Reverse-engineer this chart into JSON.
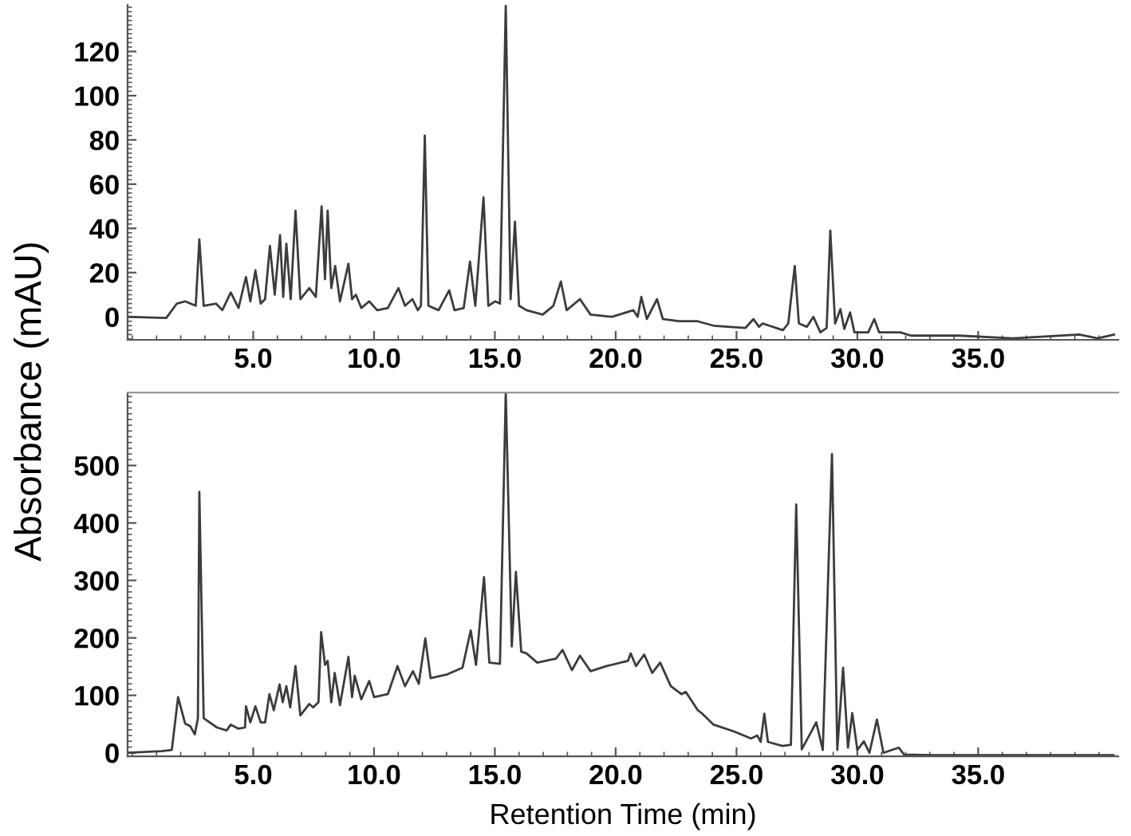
{
  "chart_data": [
    {
      "type": "line",
      "ylabel": "Absorbance (mAU)",
      "xlim": [
        -0.2,
        40.8
      ],
      "ylim": [
        -10.4,
        141
      ],
      "xticks": [
        {
          "value": 5,
          "label": "5.0"
        },
        {
          "value": 10,
          "label": "10.0"
        },
        {
          "value": 15,
          "label": "15.0"
        },
        {
          "value": 20,
          "label": "20.0"
        },
        {
          "value": 25,
          "label": "25.0"
        },
        {
          "value": 30,
          "label": "30.0"
        },
        {
          "value": 35,
          "label": "35.0"
        }
      ],
      "yticks": [
        0,
        20,
        40,
        60,
        80,
        100,
        120
      ],
      "grid": false,
      "marker": "none",
      "line_style": "solid",
      "series": [
        {
          "color": "#3c3c3c",
          "x": [
            -0.2,
            1.4,
            1.84,
            2.18,
            2.62,
            2.77,
            2.95,
            3.46,
            3.72,
            4.07,
            4.39,
            4.7,
            4.88,
            5.09,
            5.31,
            5.49,
            5.69,
            5.89,
            6.11,
            6.24,
            6.37,
            6.55,
            6.75,
            6.95,
            7.32,
            7.59,
            7.83,
            7.97,
            8.08,
            8.23,
            8.39,
            8.59,
            8.94,
            9.09,
            9.25,
            9.47,
            9.8,
            10.13,
            10.57,
            11.01,
            11.28,
            11.59,
            11.81,
            11.94,
            12.1,
            12.25,
            12.67,
            13.11,
            13.33,
            13.71,
            13.97,
            14.19,
            14.53,
            14.73,
            15.01,
            15.21,
            15.45,
            15.65,
            15.83,
            16.0,
            16.31,
            16.98,
            17.42,
            17.73,
            17.97,
            18.52,
            18.96,
            19.85,
            20.73,
            20.91,
            21.06,
            21.29,
            21.71,
            21.95,
            22.61,
            23.39,
            24.05,
            25.37,
            25.7,
            25.93,
            26.08,
            26.92,
            27.14,
            27.41,
            27.58,
            27.91,
            28.18,
            28.47,
            28.73,
            28.88,
            29.08,
            29.3,
            29.46,
            29.7,
            29.88,
            30.45,
            30.7,
            30.9,
            31.78,
            32.22,
            34.21,
            36.42,
            39.18,
            39.95,
            40.62
          ],
          "values": [
            0,
            -0.5,
            6,
            7,
            5,
            35,
            5,
            6,
            3,
            11,
            4,
            18,
            7,
            21,
            6,
            8,
            32,
            10,
            37,
            9,
            33,
            8,
            48,
            8,
            13,
            9,
            50,
            17,
            48,
            13,
            23,
            7,
            24,
            8,
            10,
            4,
            7,
            3,
            4,
            13,
            5,
            8,
            3,
            5,
            82,
            5,
            3,
            12,
            3,
            4,
            25,
            5,
            54,
            5,
            7,
            6,
            141,
            8,
            43,
            5,
            3,
            1,
            5,
            16,
            3,
            8,
            1,
            0,
            3,
            0,
            9,
            -1,
            8,
            -1,
            -2,
            -2,
            -4,
            -5,
            -1,
            -4.5,
            -3,
            -6,
            -3,
            23,
            -3,
            -4.5,
            0,
            -7,
            -5,
            39,
            -3,
            3.5,
            -5.5,
            2,
            -7,
            -7,
            -1,
            -7,
            -7,
            -8.5,
            -8.5,
            -9.7,
            -8,
            -9.7,
            -8
          ]
        }
      ]
    },
    {
      "type": "line",
      "xlabel": "Retention Time (min)",
      "xlim": [
        -0.2,
        40.8
      ],
      "ylim": [
        -6,
        627
      ],
      "xticks": [
        {
          "value": 5,
          "label": "5.0"
        },
        {
          "value": 10,
          "label": "10.0"
        },
        {
          "value": 15,
          "label": "15.0"
        },
        {
          "value": 20,
          "label": "20.0"
        },
        {
          "value": 25,
          "label": "25.0"
        },
        {
          "value": 30,
          "label": "30.0"
        },
        {
          "value": 35,
          "label": "35.0"
        }
      ],
      "yticks": [
        0,
        100,
        200,
        300,
        400,
        500
      ],
      "grid": false,
      "marker": "none",
      "line_style": "solid",
      "series": [
        {
          "color": "#3c3c3c",
          "x": [
            -0.2,
            1.2,
            1.63,
            1.89,
            2.18,
            2.4,
            2.58,
            2.71,
            2.77,
            2.95,
            3.5,
            3.9,
            4.07,
            4.39,
            4.66,
            4.7,
            4.88,
            5.09,
            5.31,
            5.49,
            5.67,
            5.85,
            6.09,
            6.22,
            6.37,
            6.53,
            6.75,
            6.95,
            7.32,
            7.48,
            7.7,
            7.81,
            7.97,
            8.08,
            8.23,
            8.37,
            8.59,
            8.94,
            9.09,
            9.2,
            9.47,
            9.8,
            10.0,
            10.57,
            10.97,
            11.28,
            11.61,
            11.85,
            12.12,
            12.34,
            13.0,
            13.66,
            14.0,
            14.22,
            14.55,
            14.77,
            15.21,
            15.45,
            15.7,
            15.87,
            16.09,
            16.31,
            16.75,
            17.53,
            17.8,
            18.19,
            18.52,
            18.96,
            19.63,
            20.51,
            20.62,
            20.84,
            21.18,
            21.51,
            21.84,
            22.28,
            22.72,
            22.9,
            23.4,
            23.56,
            24.05,
            24.9,
            25.6,
            25.86,
            26.0,
            26.15,
            26.3,
            26.9,
            27.25,
            27.47,
            27.7,
            28.3,
            28.57,
            28.95,
            29.17,
            29.41,
            29.61,
            29.79,
            30.0,
            30.27,
            30.5,
            30.81,
            31.08,
            31.71,
            31.93,
            33.1,
            36.5,
            40.6
          ],
          "values": [
            0,
            3,
            5,
            97,
            51,
            46,
            32,
            60,
            454,
            60,
            44,
            39,
            49,
            42,
            44,
            81,
            53,
            81,
            53,
            53,
            102,
            74,
            119,
            88,
            116,
            79,
            151,
            65,
            85,
            79,
            88,
            210,
            153,
            160,
            88,
            139,
            83,
            167,
            97,
            134,
            93,
            125,
            97,
            102,
            151,
            116,
            142,
            120,
            199,
            130,
            136,
            148,
            213,
            153,
            306,
            157,
            155,
            627,
            185,
            315,
            176,
            173,
            157,
            164,
            179,
            144,
            169,
            142,
            151,
            160,
            173,
            151,
            171,
            139,
            157,
            116,
            102,
            106,
            74,
            69,
            49,
            37,
            25,
            30,
            19,
            68,
            19,
            12,
            14,
            432,
            6,
            53,
            5,
            520,
            5,
            148,
            9,
            69,
            5,
            20,
            0,
            58,
            0,
            9,
            -3,
            -4,
            -4,
            -4
          ]
        }
      ]
    }
  ]
}
